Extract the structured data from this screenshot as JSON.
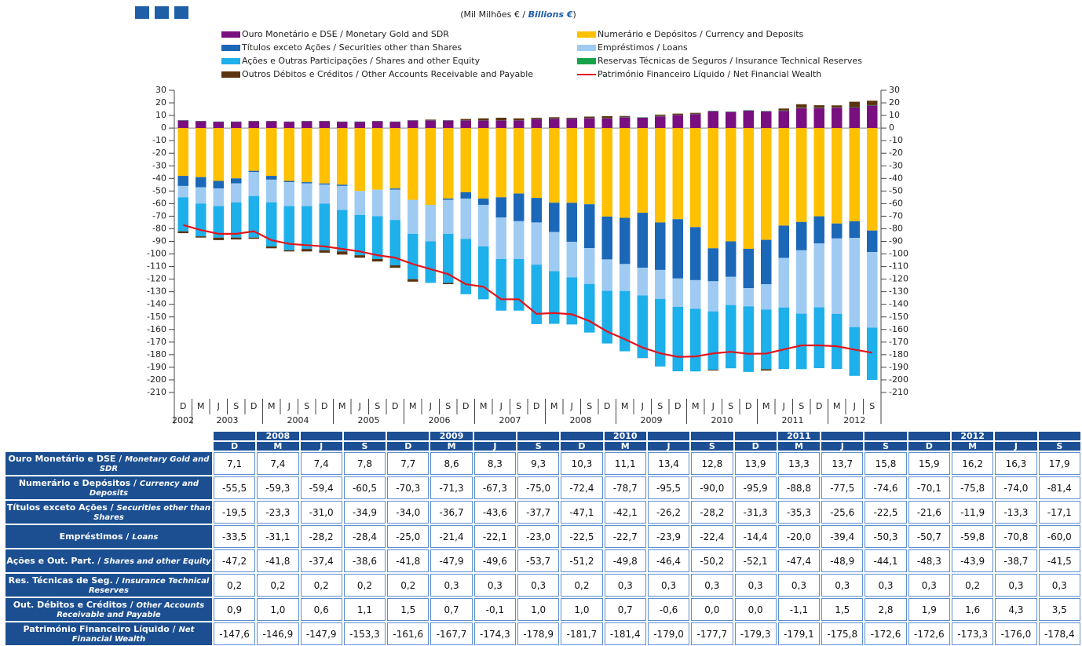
{
  "chart_data": {
    "type": "bar",
    "subtitle": {
      "text": "(Mil Milhões € / ",
      "emphasis": "Billions €",
      "end": ")"
    },
    "categories": [
      "D",
      "M",
      "J",
      "S",
      "D",
      "M",
      "J",
      "S",
      "D",
      "M",
      "J",
      "S",
      "D",
      "M",
      "J",
      "S",
      "D",
      "M",
      "J",
      "S",
      "D",
      "M",
      "J",
      "S",
      "D",
      "M",
      "J",
      "S",
      "D",
      "M",
      "J",
      "S",
      "D",
      "M",
      "J",
      "S",
      "D",
      "M",
      "J",
      "S"
    ],
    "years": [
      "2002",
      "2003",
      "2004",
      "2005",
      "2006",
      "2007",
      "2008",
      "2009",
      "2010",
      "2011",
      "2012"
    ],
    "ylim": [
      -210,
      30
    ],
    "yticks": [
      30,
      20,
      10,
      0,
      -10,
      -20,
      -30,
      -40,
      -50,
      -60,
      -70,
      -80,
      -90,
      -100,
      -110,
      -120,
      -130,
      -140,
      -150,
      -160,
      -170,
      -180,
      -190,
      -200,
      -210
    ],
    "y2lim": [
      -210,
      30
    ],
    "y2ticks": [
      30,
      20,
      10,
      0,
      -10,
      -20,
      -30,
      -40,
      -50,
      -60,
      -70,
      -80,
      -90,
      -100,
      -110,
      -120,
      -130,
      -140,
      -150,
      -160,
      -170,
      -180,
      -190,
      -200,
      -210
    ],
    "stacked": true,
    "series": [
      {
        "name": "Ouro Monetário e DSE / Monetary Gold and SDR",
        "color": "#7a0f80",
        "values": [
          6,
          5.5,
          5,
          5,
          5.5,
          5.5,
          5,
          5.5,
          5.5,
          5,
          5,
          5.5,
          5,
          6,
          6,
          6,
          6,
          6,
          6,
          6,
          7.1,
          7.4,
          7.4,
          7.8,
          7.7,
          8.6,
          8.3,
          9.3,
          10.3,
          11.1,
          13.4,
          12.8,
          13.9,
          13.3,
          13.7,
          15.8,
          15.9,
          16.2,
          16.3,
          17.9
        ]
      },
      {
        "name": "Numerário e Depósitos / Currency and Deposits",
        "color": "#ffc000",
        "values": [
          -38,
          -39,
          -42,
          -40,
          -34,
          -38,
          -42,
          -43,
          -44,
          -45,
          -50,
          -49,
          -48,
          -57,
          -61,
          -56,
          -51,
          -56,
          -55,
          -52,
          -55.5,
          -59.3,
          -59.4,
          -60.5,
          -70.3,
          -71.3,
          -67.3,
          -75.0,
          -72.4,
          -78.7,
          -95.5,
          -90.0,
          -95.9,
          -88.8,
          -77.5,
          -74.6,
          -70.1,
          -75.8,
          -74.0,
          -81.4
        ]
      },
      {
        "name": "Títulos exceto Ações / Securities other than Shares",
        "color": "#1c68b8",
        "values": [
          -8,
          -8,
          -6,
          -4,
          -1,
          -3,
          -1,
          -1,
          -1,
          -1,
          0,
          0,
          -1,
          0,
          0,
          -1,
          -5,
          -5,
          -16,
          -22,
          -19.5,
          -23.3,
          -31.0,
          -34.9,
          -34.0,
          -36.7,
          -43.6,
          -37.7,
          -47.1,
          -42.1,
          -26.2,
          -28.2,
          -31.3,
          -35.3,
          -25.6,
          -22.5,
          -21.6,
          -11.9,
          -13.3,
          -17.1
        ]
      },
      {
        "name": "Empréstimos / Loans",
        "color": "#9fcbf3",
        "values": [
          -9,
          -13,
          -14,
          -15,
          -19,
          -18,
          -19,
          -18,
          -15,
          -19,
          -19,
          -21,
          -24,
          -27,
          -29,
          -27,
          -32,
          -33,
          -33,
          -30,
          -33.5,
          -31.1,
          -28.2,
          -28.4,
          -25.0,
          -21.4,
          -22.1,
          -23.0,
          -22.5,
          -22.7,
          -23.9,
          -22.4,
          -14.4,
          -20.0,
          -39.4,
          -50.3,
          -50.7,
          -59.8,
          -70.8,
          -60.0
        ]
      },
      {
        "name": "Ações e Outras Participações / Shares and other Equity",
        "color": "#1eb0ea",
        "values": [
          -27,
          -26,
          -25,
          -28,
          -33,
          -35,
          -35,
          -34,
          -37,
          -33,
          -32,
          -34,
          -36,
          -36,
          -33,
          -39,
          -44,
          -42,
          -41,
          -41,
          -47.2,
          -41.8,
          -37.4,
          -38.6,
          -41.8,
          -47.9,
          -49.6,
          -53.7,
          -51.2,
          -49.8,
          -46.4,
          -50.2,
          -52.1,
          -47.4,
          -48.9,
          -44.1,
          -48.3,
          -43.9,
          -38.7,
          -41.5
        ]
      },
      {
        "name": "Reservas Técnicas de Seguros / Insurance Technical Reserves",
        "color": "#17a34a",
        "values": [
          0.2,
          0.2,
          0.2,
          0.2,
          0.2,
          0.2,
          0.2,
          0.2,
          0.2,
          0.2,
          0.2,
          0.2,
          0.2,
          0.2,
          0.2,
          0.2,
          0.2,
          0.2,
          0.2,
          0.2,
          0.2,
          0.2,
          0.2,
          0.2,
          0.2,
          0.3,
          0.3,
          0.3,
          0.2,
          0.3,
          0.3,
          0.3,
          0.3,
          0.3,
          0.3,
          0.3,
          0.3,
          0.2,
          0.3,
          0.3
        ]
      },
      {
        "name": "Outros Débitos e Créditos / Other Accounts Receivable and Payable",
        "color": "#5c3410",
        "values": [
          -1.5,
          -1,
          -2,
          -1.5,
          -1,
          -1.5,
          -1,
          -2,
          -2,
          -2.5,
          -2,
          -2,
          -2,
          -2,
          0.5,
          -1,
          1,
          1.5,
          2,
          1.5,
          0.9,
          1.0,
          0.6,
          1.1,
          1.5,
          0.7,
          -0.1,
          1.0,
          1.0,
          0.7,
          -0.6,
          0.0,
          0.0,
          -1.1,
          1.5,
          2.8,
          1.9,
          1.6,
          4.3,
          3.5
        ]
      },
      {
        "name": "Património Financeiro Líquido / Net Financial Wealth",
        "color": "#e3141c",
        "type": "line",
        "values": [
          -77,
          -81,
          -84,
          -84,
          -82,
          -89,
          -92,
          -93,
          -94,
          -96,
          -98,
          -101,
          -103,
          -108,
          -112,
          -116,
          -124,
          -126,
          -136,
          -136,
          -147.6,
          -146.9,
          -147.9,
          -153.3,
          -161.6,
          -167.7,
          -174.3,
          -178.9,
          -181.7,
          -181.4,
          -179.0,
          -177.7,
          -179.3,
          -179.1,
          -175.8,
          -172.6,
          -172.6,
          -173.3,
          -176.0,
          -178.4
        ]
      }
    ]
  },
  "table": {
    "header_years": [
      null,
      "2008",
      null,
      null,
      null,
      "2009",
      null,
      null,
      null,
      "2010",
      null,
      null,
      null,
      "2011",
      null,
      null,
      null,
      "2012",
      null,
      null
    ],
    "header_quarters": [
      "D",
      "M",
      "J",
      "S",
      "D",
      "M",
      "J",
      "S",
      "D",
      "M",
      "J",
      "S",
      "D",
      "M",
      "J",
      "S",
      "D",
      "M",
      "J",
      "S"
    ],
    "rows": [
      {
        "label": "Ouro Monetário e DSE / ",
        "label_en": "Monetary Gold and SDR",
        "values": [
          "7,1",
          "7,4",
          "7,4",
          "7,8",
          "7,7",
          "8,6",
          "8,3",
          "9,3",
          "10,3",
          "11,1",
          "13,4",
          "12,8",
          "13,9",
          "13,3",
          "13,7",
          "15,8",
          "15,9",
          "16,2",
          "16,3",
          "17,9"
        ]
      },
      {
        "label": "Numerário e Depósitos / ",
        "label_en": "Currency and Deposits",
        "values": [
          "-55,5",
          "-59,3",
          "-59,4",
          "-60,5",
          "-70,3",
          "-71,3",
          "-67,3",
          "-75,0",
          "-72,4",
          "-78,7",
          "-95,5",
          "-90,0",
          "-95,9",
          "-88,8",
          "-77,5",
          "-74,6",
          "-70,1",
          "-75,8",
          "-74,0",
          "-81,4"
        ]
      },
      {
        "label": "Títulos exceto Ações / ",
        "label_en": "Securities other than Shares",
        "values": [
          "-19,5",
          "-23,3",
          "-31,0",
          "-34,9",
          "-34,0",
          "-36,7",
          "-43,6",
          "-37,7",
          "-47,1",
          "-42,1",
          "-26,2",
          "-28,2",
          "-31,3",
          "-35,3",
          "-25,6",
          "-22,5",
          "-21,6",
          "-11,9",
          "-13,3",
          "-17,1"
        ]
      },
      {
        "label": "Empréstimos / ",
        "label_en": "Loans",
        "values": [
          "-33,5",
          "-31,1",
          "-28,2",
          "-28,4",
          "-25,0",
          "-21,4",
          "-22,1",
          "-23,0",
          "-22,5",
          "-22,7",
          "-23,9",
          "-22,4",
          "-14,4",
          "-20,0",
          "-39,4",
          "-50,3",
          "-50,7",
          "-59,8",
          "-70,8",
          "-60,0"
        ]
      },
      {
        "label": "Ações e Out. Part. / ",
        "label_en": "Shares and other Equity",
        "values": [
          "-47,2",
          "-41,8",
          "-37,4",
          "-38,6",
          "-41,8",
          "-47,9",
          "-49,6",
          "-53,7",
          "-51,2",
          "-49,8",
          "-46,4",
          "-50,2",
          "-52,1",
          "-47,4",
          "-48,9",
          "-44,1",
          "-48,3",
          "-43,9",
          "-38,7",
          "-41,5"
        ]
      },
      {
        "label": "Res. Técnicas de Seg. / ",
        "label_en": "Insurance Technical Reserves",
        "values": [
          "0,2",
          "0,2",
          "0,2",
          "0,2",
          "0,2",
          "0,3",
          "0,3",
          "0,3",
          "0,2",
          "0,3",
          "0,3",
          "0,3",
          "0,3",
          "0,3",
          "0,3",
          "0,3",
          "0,3",
          "0,2",
          "0,3",
          "0,3"
        ]
      },
      {
        "label": "Out. Débitos e Créditos / ",
        "label_en": "Other Accounts Receivable and Payable",
        "values": [
          "0,9",
          "1,0",
          "0,6",
          "1,1",
          "1,5",
          "0,7",
          "-0,1",
          "1,0",
          "1,0",
          "0,7",
          "-0,6",
          "0,0",
          "0,0",
          "-1,1",
          "1,5",
          "2,8",
          "1,9",
          "1,6",
          "4,3",
          "3,5"
        ]
      },
      {
        "label": "Património Financeiro Líquido / ",
        "label_en": "Net Financial Wealth",
        "values": [
          "-147,6",
          "-146,9",
          "-147,9",
          "-153,3",
          "-161,6",
          "-167,7",
          "-174,3",
          "-178,9",
          "-181,7",
          "-181,4",
          "-179,0",
          "-177,7",
          "-179,3",
          "-179,1",
          "-175,8",
          "-172,6",
          "-172,6",
          "-173,3",
          "-176,0",
          "-178,4"
        ]
      }
    ]
  }
}
